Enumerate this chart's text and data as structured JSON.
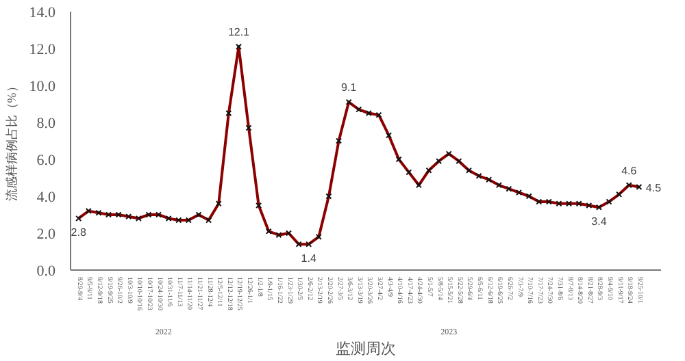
{
  "chart_data": {
    "type": "line",
    "xlabel": "监测周次",
    "ylabel": "流感样病例占比（%）",
    "categories": [
      "8/29-9/4",
      "9/5-9/11",
      "9/12-9/18",
      "9/19-9/25",
      "9/26-10/2",
      "10/3-10/9",
      "10/10-10/16",
      "10/17-10/23",
      "10/24-10/30",
      "10/31-11/6",
      "11/7-11/13",
      "11/14-11/20",
      "11/21-11/27",
      "11/28-12/4",
      "12/5-12/11",
      "12/12-12/18",
      "12/19-12/25",
      "12/26-1/1",
      "1/2-1/8",
      "1/9-1/15",
      "1/16-1/22",
      "1/23-1/29",
      "1/30-2/5",
      "2/6-2/12",
      "2/13-2/19",
      "2/20-2/26",
      "2/27-3/5",
      "3/6-3/12",
      "3/13-3/19",
      "3/20-3/26",
      "3/27-4/2",
      "4/3-4/9",
      "4/10-4/16",
      "4/17-4/23",
      "4/24-4/30",
      "5/1-5/7",
      "5/8-5/14",
      "5/15-5/21",
      "5/22-5/28",
      "5/29-6/4",
      "6/5-6/11",
      "6/12-6/18",
      "6/19-6/25",
      "6/26-7/2",
      "7/3-7/9",
      "7/10-7/16",
      "7/17-7/23",
      "7/24-7/30",
      "7/31-8/6",
      "8/7-8/13",
      "8/14-8/20",
      "8/21-8/27",
      "8/28-9/3",
      "9/4-9/10",
      "9/11-9/17",
      "9/18-9/24",
      "9/25-10/1"
    ],
    "series": [
      {
        "color": "#8b0000",
        "values": [
          2.8,
          3.2,
          3.1,
          3.0,
          3.0,
          2.9,
          2.8,
          3.0,
          3.0,
          2.8,
          2.7,
          2.7,
          3.0,
          2.7,
          3.6,
          8.5,
          12.1,
          7.7,
          3.5,
          2.1,
          1.9,
          2.0,
          1.4,
          1.4,
          1.8,
          4.0,
          7.0,
          9.1,
          8.7,
          8.5,
          8.4,
          7.3,
          6.0,
          5.3,
          4.6,
          5.4,
          5.9,
          6.3,
          5.9,
          5.4,
          5.1,
          4.9,
          4.6,
          4.4,
          4.2,
          4.0,
          3.7,
          3.7,
          3.6,
          3.6,
          3.6,
          3.5,
          3.4,
          3.7,
          4.1,
          4.6,
          4.5
        ],
        "value_labels": [
          "2.8",
          null,
          null,
          null,
          null,
          null,
          null,
          null,
          null,
          null,
          null,
          null,
          null,
          null,
          null,
          null,
          "12.1",
          null,
          null,
          null,
          null,
          null,
          null,
          "1.4",
          null,
          null,
          null,
          "9.1",
          null,
          null,
          null,
          null,
          null,
          null,
          null,
          null,
          null,
          null,
          null,
          null,
          null,
          null,
          null,
          null,
          null,
          null,
          null,
          null,
          null,
          null,
          null,
          null,
          "3.4",
          null,
          null,
          "4.6",
          "4.5"
        ]
      }
    ],
    "annotations": [
      "2022",
      "2023"
    ],
    "ylim": [
      0,
      14
    ],
    "yticks": [
      {
        "value": 0,
        "label": "0.0"
      },
      {
        "value": 2,
        "label": "2.0"
      },
      {
        "value": 4,
        "label": "4.0"
      },
      {
        "value": 6,
        "label": "6.0"
      },
      {
        "value": 8,
        "label": "8.0"
      },
      {
        "value": 10,
        "label": "10.0"
      },
      {
        "value": 12,
        "label": "12.0"
      },
      {
        "value": 14,
        "label": "14.0"
      }
    ],
    "marker": "cross",
    "line_style": "solid",
    "grid": false
  }
}
